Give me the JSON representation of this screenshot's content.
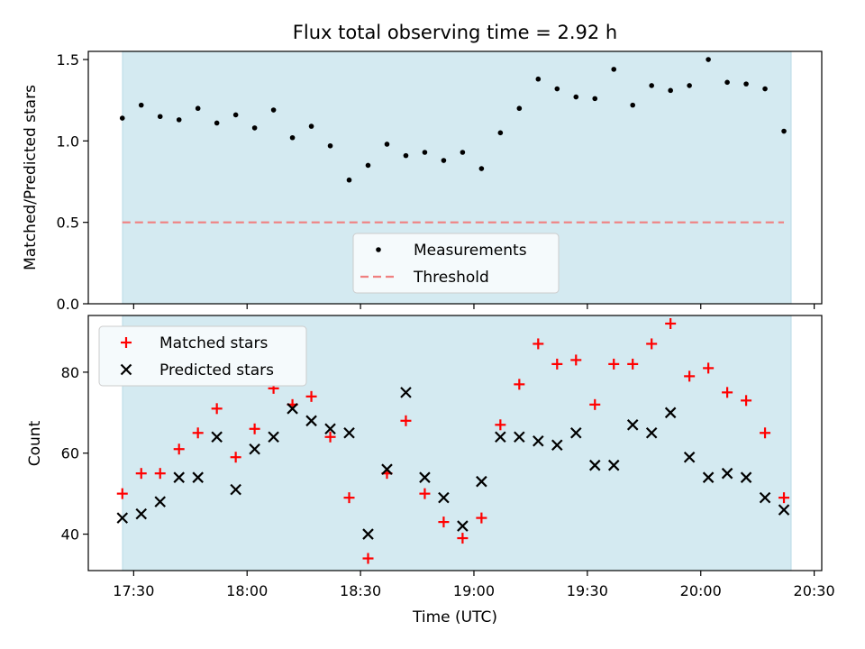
{
  "chart_data": [
    {
      "type": "scatter",
      "title": "Flux total observing time = 2.92 h",
      "xlabel": "",
      "ylabel": "Matched/Predicted stars",
      "ylim": [
        0.0,
        1.55
      ],
      "yticks": [
        "0.0",
        "0.5",
        "1.0",
        "1.5"
      ],
      "shaded_span_color": "#add8e6",
      "legend_position": "lower-center",
      "threshold": {
        "name": "Threshold",
        "value": 0.5,
        "color": "#f08080",
        "style": "dashed"
      },
      "series": [
        {
          "name": "Measurements",
          "color": "#000000",
          "marker": "dot",
          "x": [
            "17:27",
            "17:32",
            "17:37",
            "17:42",
            "17:47",
            "17:52",
            "17:57",
            "18:02",
            "18:07",
            "18:12",
            "18:17",
            "18:22",
            "18:27",
            "18:32",
            "18:37",
            "18:42",
            "18:47",
            "18:52",
            "18:57",
            "19:02",
            "19:07",
            "19:12",
            "19:17",
            "19:22",
            "19:27",
            "19:32",
            "19:37",
            "19:42",
            "19:47",
            "19:52",
            "19:57",
            "20:02",
            "20:07",
            "20:12",
            "20:17",
            "20:22"
          ],
          "y": [
            1.14,
            1.22,
            1.15,
            1.13,
            1.2,
            1.11,
            1.16,
            1.08,
            1.19,
            1.02,
            1.09,
            0.97,
            0.76,
            0.85,
            0.98,
            0.91,
            0.93,
            0.88,
            0.93,
            0.83,
            1.05,
            1.2,
            1.38,
            1.32,
            1.27,
            1.26,
            1.44,
            1.22,
            1.34,
            1.31,
            1.34,
            1.5,
            1.36,
            1.35,
            1.32,
            1.06
          ]
        }
      ]
    },
    {
      "type": "scatter",
      "title": "",
      "xlabel": "Time (UTC)",
      "ylabel": "Count",
      "ylim": [
        31,
        94
      ],
      "yticks": [
        "40",
        "60",
        "80"
      ],
      "xticks": [
        "17:30",
        "18:00",
        "18:30",
        "19:00",
        "19:30",
        "20:00",
        "20:30"
      ],
      "xlim": [
        "17:18",
        "20:32"
      ],
      "shaded_span": [
        "17:27",
        "20:22"
      ],
      "shaded_span_color": "#add8e6",
      "legend_position": "upper-left",
      "series": [
        {
          "name": "Matched stars",
          "color": "#ff0000",
          "marker": "plus",
          "x": [
            "17:27",
            "17:32",
            "17:37",
            "17:42",
            "17:47",
            "17:52",
            "17:57",
            "18:02",
            "18:07",
            "18:12",
            "18:17",
            "18:22",
            "18:27",
            "18:32",
            "18:37",
            "18:42",
            "18:47",
            "18:52",
            "18:57",
            "19:02",
            "19:07",
            "19:12",
            "19:17",
            "19:22",
            "19:27",
            "19:32",
            "19:37",
            "19:42",
            "19:47",
            "19:52",
            "19:57",
            "20:02",
            "20:07",
            "20:12",
            "20:17",
            "20:22"
          ],
          "y": [
            50,
            55,
            55,
            61,
            65,
            71,
            59,
            66,
            76,
            72,
            74,
            64,
            49,
            34,
            55,
            68,
            50,
            43,
            39,
            44,
            67,
            77,
            87,
            82,
            83,
            72,
            82,
            82,
            87,
            92,
            79,
            81,
            75,
            73,
            65,
            49
          ]
        },
        {
          "name": "Predicted stars",
          "color": "#000000",
          "marker": "x",
          "x": [
            "17:27",
            "17:32",
            "17:37",
            "17:42",
            "17:47",
            "17:52",
            "17:57",
            "18:02",
            "18:07",
            "18:12",
            "18:17",
            "18:22",
            "18:27",
            "18:32",
            "18:37",
            "18:42",
            "18:47",
            "18:52",
            "18:57",
            "19:02",
            "19:07",
            "19:12",
            "19:17",
            "19:22",
            "19:27",
            "19:32",
            "19:37",
            "19:42",
            "19:47",
            "19:52",
            "19:57",
            "20:02",
            "20:07",
            "20:12",
            "20:17",
            "20:22"
          ],
          "y": [
            44,
            45,
            48,
            54,
            54,
            64,
            51,
            61,
            64,
            71,
            68,
            66,
            65,
            40,
            56,
            75,
            54,
            49,
            42,
            53,
            64,
            64,
            63,
            62,
            65,
            57,
            57,
            67,
            65,
            70,
            59,
            54,
            55,
            54,
            49,
            46
          ]
        }
      ]
    }
  ]
}
